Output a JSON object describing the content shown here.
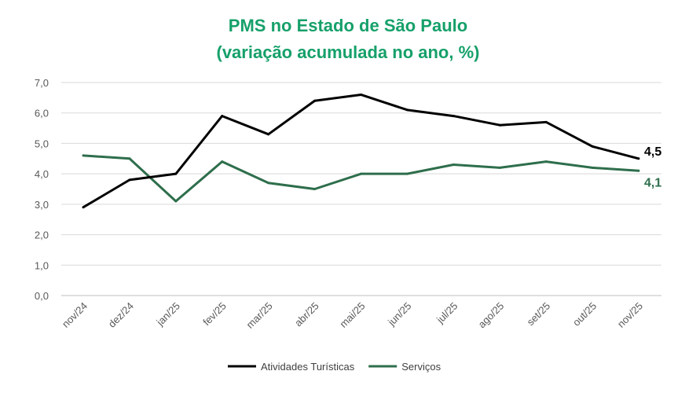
{
  "chart_data": {
    "type": "line",
    "title": "PMS no Estado de São Paulo",
    "subtitle": "(variação acumulada no ano, %)",
    "xlabel": "",
    "ylabel": "",
    "ylim": [
      0,
      7
    ],
    "yticks": [
      "0,0",
      "1,0",
      "2,0",
      "3,0",
      "4,0",
      "5,0",
      "6,0",
      "7,0"
    ],
    "grid": true,
    "legend_position": "bottom",
    "categories": [
      "nov/24",
      "dez/24",
      "jan/25",
      "fev/25",
      "mar/25",
      "abr/25",
      "mai/25",
      "jun/25",
      "jul/25",
      "ago/25",
      "set/25",
      "out/25",
      "nov/25"
    ],
    "series": [
      {
        "name": "Atividades Turísticas",
        "color": "#000000",
        "end_label": "4,5",
        "values": [
          2.9,
          3.8,
          4.0,
          5.9,
          5.3,
          6.4,
          6.6,
          6.1,
          5.9,
          5.6,
          5.7,
          4.9,
          4.5
        ]
      },
      {
        "name": "Serviços",
        "color": "#2e6e4c",
        "end_label": "4,1",
        "values": [
          4.6,
          4.5,
          3.1,
          4.4,
          3.7,
          3.5,
          4.0,
          4.0,
          4.3,
          4.2,
          4.4,
          4.2,
          4.1
        ]
      }
    ]
  }
}
